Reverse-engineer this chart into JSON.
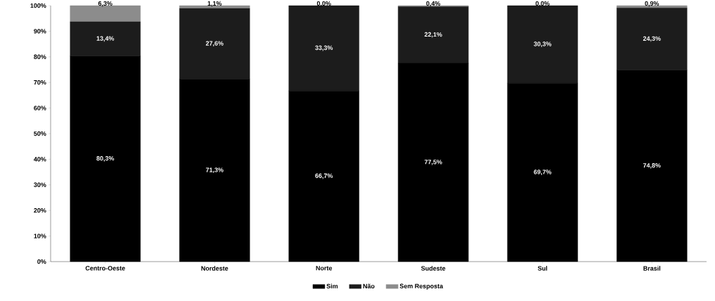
{
  "chart_data": {
    "type": "bar",
    "stacked": true,
    "categories": [
      "Centro-Oeste",
      "Nordeste",
      "Norte",
      "Sudeste",
      "Sul",
      "Brasil"
    ],
    "series": [
      {
        "name": "Sim",
        "color": "#000000",
        "values": [
          80.3,
          71.3,
          66.7,
          77.5,
          69.7,
          74.8
        ],
        "value_labels": [
          "80,3%",
          "71,3%",
          "66,7%",
          "77,5%",
          "69,7%",
          "74,8%"
        ]
      },
      {
        "name": "Não",
        "color": "#1c1c1c",
        "values": [
          13.4,
          27.6,
          33.3,
          22.1,
          30.3,
          24.3
        ],
        "value_labels": [
          "13,4%",
          "27,6%",
          "33,3%",
          "22,1%",
          "30,3%",
          "24,3%"
        ]
      },
      {
        "name": "Sem Resposta",
        "color": "#8c8c8c",
        "values": [
          6.3,
          1.1,
          0.0,
          0.4,
          0.0,
          0.9
        ],
        "value_labels": [
          "6,3%",
          "1,1%",
          "0,0%",
          "0,4%",
          "0,0%",
          "0,9%"
        ]
      }
    ],
    "ylim": [
      0,
      100
    ],
    "yticks": [
      {
        "value": 0,
        "label": "0%"
      },
      {
        "value": 10,
        "label": "10%"
      },
      {
        "value": 20,
        "label": "20%"
      },
      {
        "value": 30,
        "label": "30%"
      },
      {
        "value": 40,
        "label": "40%"
      },
      {
        "value": 50,
        "label": "50%"
      },
      {
        "value": 60,
        "label": "60%"
      },
      {
        "value": 70,
        "label": "70%"
      },
      {
        "value": 80,
        "label": "80%"
      },
      {
        "value": 90,
        "label": "90%"
      },
      {
        "value": 100,
        "label": "100%"
      }
    ],
    "grid": false,
    "legend": "bottom"
  }
}
